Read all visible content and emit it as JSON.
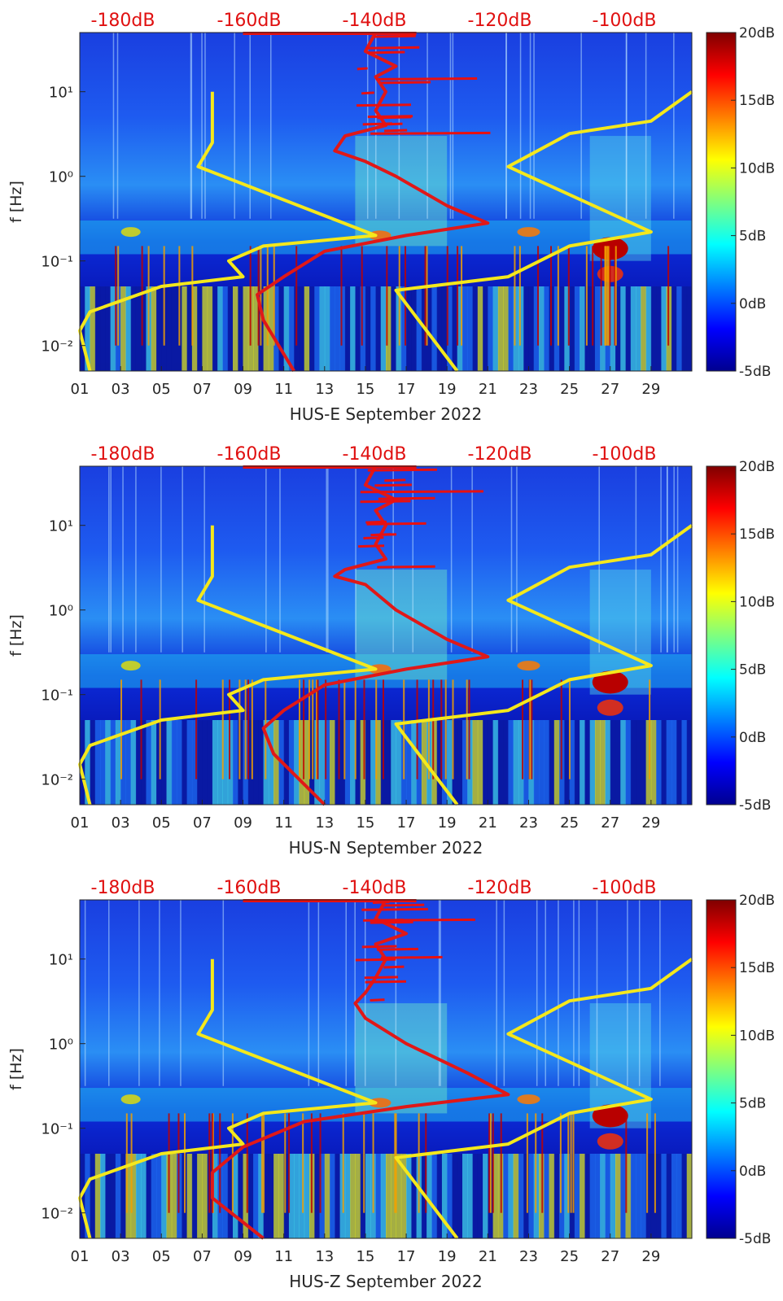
{
  "chart_data": [
    {
      "type": "heatmap",
      "xlabel": "HUS-E September 2022",
      "ylabel": "f [Hz]",
      "x_ticks": [
        "01",
        "03",
        "05",
        "07",
        "09",
        "11",
        "13",
        "15",
        "17",
        "19",
        "21",
        "23",
        "25",
        "27",
        "29"
      ],
      "y_ticks": [
        "10⁻²",
        "10⁻¹",
        "10⁰",
        "10¹"
      ],
      "y_scale": "log",
      "ylim": [
        0.005,
        50
      ],
      "xlim": [
        1,
        31
      ],
      "top_labels": [
        "-180dB",
        "-160dB",
        "-140dB",
        "-120dB",
        "-100dB"
      ],
      "colorbar": {
        "labels": [
          "20dB",
          "15dB",
          "10dB",
          "5dB",
          "0dB",
          "-5dB"
        ],
        "range": [
          -5,
          20
        ],
        "colormap": "jet"
      },
      "overlay_lines": [
        {
          "color": "#f4e81c",
          "desc": "low noise model",
          "points": [
            [
              7.5,
              10
            ],
            [
              7.5,
              2.5
            ],
            [
              6.8,
              1.3
            ],
            [
              15.5,
              0.2
            ],
            [
              10,
              0.15
            ],
            [
              8.3,
              0.1
            ],
            [
              9,
              0.065
            ],
            [
              5,
              0.05
            ],
            [
              1.5,
              0.025
            ],
            [
              1,
              0.015
            ],
            [
              1.5,
              0.005
            ]
          ]
        },
        {
          "color": "#f4e81c",
          "desc": "high noise model",
          "points": [
            [
              31,
              10
            ],
            [
              29,
              4.5
            ],
            [
              25,
              3.2
            ],
            [
              22,
              1.3
            ],
            [
              29,
              0.22
            ],
            [
              25,
              0.15
            ],
            [
              22,
              0.065
            ],
            [
              16.5,
              0.045
            ],
            [
              19.5,
              0.005
            ]
          ]
        },
        {
          "color": "#e01818",
          "desc": "median PSD",
          "points": [
            [
              15.5,
              50
            ],
            [
              15,
              30
            ],
            [
              16.5,
              20
            ],
            [
              15.5,
              15
            ],
            [
              16,
              10
            ],
            [
              15.5,
              6
            ],
            [
              16,
              4
            ],
            [
              14,
              3
            ],
            [
              13.5,
              2
            ],
            [
              15,
              1.5
            ],
            [
              16.5,
              1
            ],
            [
              19,
              0.45
            ],
            [
              21,
              0.28
            ],
            [
              17,
              0.2
            ],
            [
              13,
              0.13
            ],
            [
              11,
              0.065
            ],
            [
              9.7,
              0.04
            ],
            [
              10,
              0.02
            ],
            [
              11.5,
              0.005
            ]
          ]
        }
      ]
    },
    {
      "type": "heatmap",
      "xlabel": "HUS-N September 2022",
      "ylabel": "f [Hz]",
      "x_ticks": [
        "01",
        "03",
        "05",
        "07",
        "09",
        "11",
        "13",
        "15",
        "17",
        "19",
        "21",
        "23",
        "25",
        "27",
        "29"
      ],
      "y_ticks": [
        "10⁻²",
        "10⁻¹",
        "10⁰",
        "10¹"
      ],
      "y_scale": "log",
      "ylim": [
        0.005,
        50
      ],
      "xlim": [
        1,
        31
      ],
      "top_labels": [
        "-180dB",
        "-160dB",
        "-140dB",
        "-120dB",
        "-100dB"
      ],
      "colorbar": {
        "labels": [
          "20dB",
          "15dB",
          "10dB",
          "5dB",
          "0dB",
          "-5dB"
        ],
        "range": [
          -5,
          20
        ],
        "colormap": "jet"
      },
      "overlay_lines": [
        {
          "color": "#f4e81c",
          "desc": "low noise model",
          "points": [
            [
              7.5,
              10
            ],
            [
              7.5,
              2.5
            ],
            [
              6.8,
              1.3
            ],
            [
              15.5,
              0.2
            ],
            [
              10,
              0.15
            ],
            [
              8.3,
              0.1
            ],
            [
              9,
              0.065
            ],
            [
              5,
              0.05
            ],
            [
              1.5,
              0.025
            ],
            [
              1,
              0.015
            ],
            [
              1.5,
              0.005
            ]
          ]
        },
        {
          "color": "#f4e81c",
          "desc": "high noise model",
          "points": [
            [
              31,
              10
            ],
            [
              29,
              4.5
            ],
            [
              25,
              3.2
            ],
            [
              22,
              1.3
            ],
            [
              29,
              0.22
            ],
            [
              25,
              0.15
            ],
            [
              22,
              0.065
            ],
            [
              16.5,
              0.045
            ],
            [
              19.5,
              0.005
            ]
          ]
        },
        {
          "color": "#e01818",
          "desc": "median PSD",
          "points": [
            [
              15.5,
              50
            ],
            [
              15,
              30
            ],
            [
              16.5,
              20
            ],
            [
              15.5,
              15
            ],
            [
              16,
              10
            ],
            [
              15.5,
              6
            ],
            [
              16,
              4
            ],
            [
              14,
              3
            ],
            [
              13.5,
              2.5
            ],
            [
              15,
              2
            ],
            [
              16.5,
              1
            ],
            [
              19,
              0.45
            ],
            [
              21,
              0.28
            ],
            [
              17,
              0.2
            ],
            [
              13,
              0.13
            ],
            [
              11,
              0.065
            ],
            [
              10,
              0.04
            ],
            [
              10.5,
              0.02
            ],
            [
              13,
              0.005
            ]
          ]
        }
      ]
    },
    {
      "type": "heatmap",
      "xlabel": "HUS-Z September 2022",
      "ylabel": "f [Hz]",
      "x_ticks": [
        "01",
        "03",
        "05",
        "07",
        "09",
        "11",
        "13",
        "15",
        "17",
        "19",
        "21",
        "23",
        "25",
        "27",
        "29"
      ],
      "y_ticks": [
        "10⁻²",
        "10⁻¹",
        "10⁰",
        "10¹"
      ],
      "y_scale": "log",
      "ylim": [
        0.005,
        50
      ],
      "xlim": [
        1,
        31
      ],
      "top_labels": [
        "-180dB",
        "-160dB",
        "-140dB",
        "-120dB",
        "-100dB"
      ],
      "colorbar": {
        "labels": [
          "20dB",
          "15dB",
          "10dB",
          "5dB",
          "0dB",
          "-5dB"
        ],
        "range": [
          -5,
          20
        ],
        "colormap": "jet"
      },
      "overlay_lines": [
        {
          "color": "#f4e81c",
          "desc": "low noise model",
          "points": [
            [
              7.5,
              10
            ],
            [
              7.5,
              2.5
            ],
            [
              6.8,
              1.3
            ],
            [
              15.5,
              0.2
            ],
            [
              10,
              0.15
            ],
            [
              8.3,
              0.1
            ],
            [
              9,
              0.065
            ],
            [
              5,
              0.05
            ],
            [
              1.5,
              0.025
            ],
            [
              1,
              0.015
            ],
            [
              1.5,
              0.005
            ]
          ]
        },
        {
          "color": "#f4e81c",
          "desc": "high noise model",
          "points": [
            [
              31,
              10
            ],
            [
              29,
              4.5
            ],
            [
              25,
              3.2
            ],
            [
              22,
              1.3
            ],
            [
              29,
              0.22
            ],
            [
              25,
              0.15
            ],
            [
              22,
              0.065
            ],
            [
              16.5,
              0.045
            ],
            [
              19.5,
              0.005
            ]
          ]
        },
        {
          "color": "#e01818",
          "desc": "median PSD",
          "points": [
            [
              16,
              50
            ],
            [
              15.5,
              30
            ],
            [
              17,
              20
            ],
            [
              15.5,
              15
            ],
            [
              16,
              10
            ],
            [
              15.5,
              6
            ],
            [
              15,
              4
            ],
            [
              14.5,
              3
            ],
            [
              15,
              2
            ],
            [
              17,
              1
            ],
            [
              20,
              0.45
            ],
            [
              22,
              0.25
            ],
            [
              17,
              0.18
            ],
            [
              12,
              0.12
            ],
            [
              9,
              0.06
            ],
            [
              7.5,
              0.03
            ],
            [
              7.5,
              0.015
            ],
            [
              10,
              0.005
            ]
          ]
        }
      ]
    }
  ]
}
